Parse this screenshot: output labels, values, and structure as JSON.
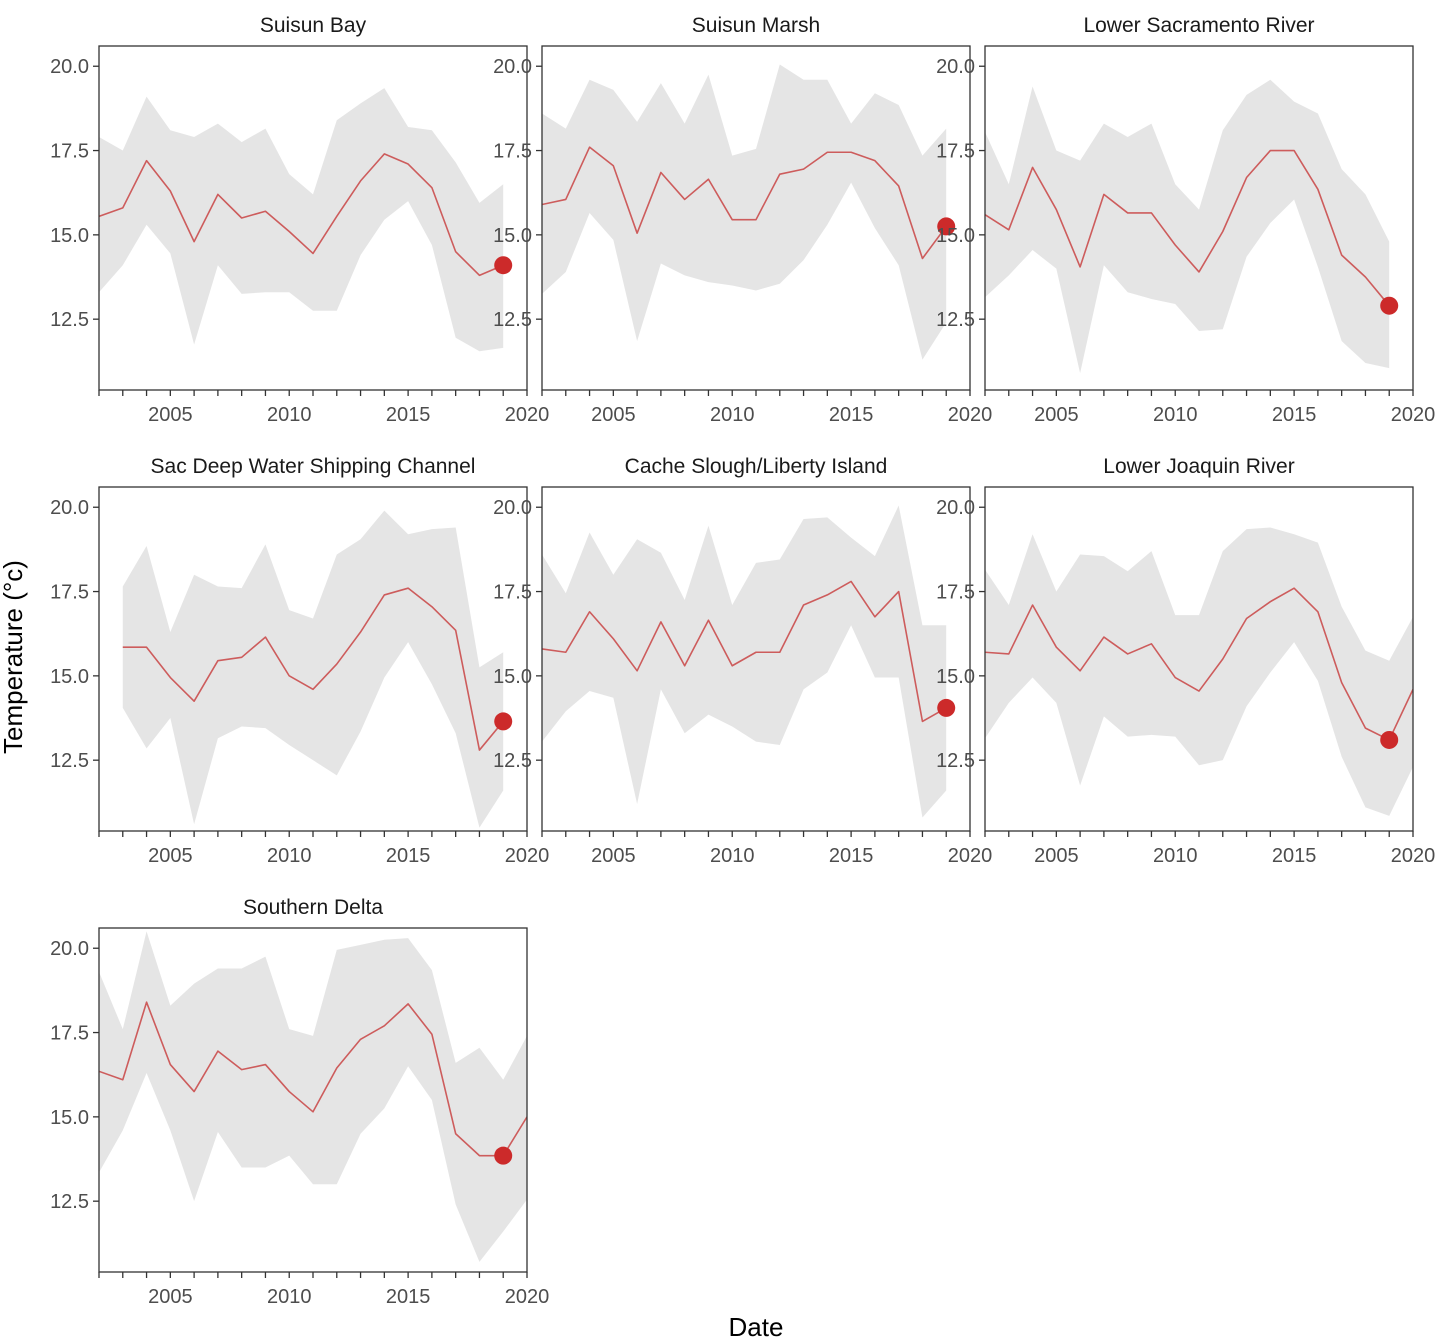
{
  "chart_data": {
    "type": "line",
    "xlabel": "Date",
    "ylabel": "Temperature (°c)",
    "xlim": [
      2002,
      2020
    ],
    "ylim": [
      10.4,
      20.6
    ],
    "x_ticks": [
      "2005",
      "2010",
      "2015",
      "2020"
    ],
    "y_ticks": [
      "12.5",
      "15.0",
      "17.5",
      "20.0"
    ],
    "grid": false,
    "legend": "none",
    "colors": {
      "line": "#cd5c5c",
      "point": "#cc2a2a",
      "ribbon": "#e5e5e5",
      "frame": "#333333"
    },
    "panels": [
      {
        "title": "Suisun Bay",
        "x": [
          2002,
          2003,
          2004,
          2005,
          2006,
          2007,
          2008,
          2009,
          2010,
          2011,
          2012,
          2013,
          2014,
          2015,
          2016,
          2017,
          2018,
          2019
        ],
        "mean": [
          15.55,
          15.8,
          17.2,
          16.3,
          14.8,
          16.2,
          15.5,
          15.7,
          15.1,
          14.45,
          15.55,
          16.6,
          17.4,
          17.1,
          16.4,
          14.5,
          13.8,
          14.1
        ],
        "upper": [
          17.9,
          17.5,
          19.1,
          18.1,
          17.9,
          18.3,
          17.75,
          18.15,
          16.8,
          16.2,
          18.4,
          18.9,
          19.35,
          18.2,
          18.1,
          17.15,
          15.95,
          16.5
        ],
        "lower": [
          13.3,
          14.1,
          15.3,
          14.45,
          11.75,
          14.1,
          13.25,
          13.3,
          13.3,
          12.75,
          12.75,
          14.4,
          15.45,
          16.0,
          14.7,
          11.95,
          11.55,
          11.65
        ],
        "point": {
          "x": 2019,
          "y": 14.1
        }
      },
      {
        "title": "Suisun Marsh",
        "x": [
          2002,
          2003,
          2004,
          2005,
          2006,
          2007,
          2008,
          2009,
          2010,
          2011,
          2012,
          2013,
          2014,
          2015,
          2016,
          2017,
          2018,
          2019
        ],
        "mean": [
          15.9,
          16.05,
          17.6,
          17.05,
          15.05,
          16.85,
          16.05,
          16.65,
          15.45,
          15.45,
          16.8,
          16.95,
          17.45,
          17.45,
          17.2,
          16.45,
          14.3,
          15.25
        ],
        "upper": [
          18.6,
          18.15,
          19.6,
          19.3,
          18.35,
          19.5,
          18.3,
          19.75,
          17.35,
          17.55,
          20.05,
          19.6,
          19.6,
          18.3,
          19.2,
          18.85,
          17.35,
          18.15
        ],
        "lower": [
          13.25,
          13.9,
          15.65,
          14.85,
          11.85,
          14.15,
          13.8,
          13.6,
          13.5,
          13.35,
          13.55,
          14.25,
          15.3,
          16.55,
          15.2,
          14.1,
          11.3,
          12.4
        ],
        "point": {
          "x": 2019,
          "y": 15.25
        }
      },
      {
        "title": "Lower Sacramento River",
        "x": [
          2002,
          2003,
          2004,
          2005,
          2006,
          2007,
          2008,
          2009,
          2010,
          2011,
          2012,
          2013,
          2014,
          2015,
          2016,
          2017,
          2018,
          2019
        ],
        "mean": [
          15.6,
          15.15,
          17.0,
          15.75,
          14.05,
          16.2,
          15.65,
          15.65,
          14.7,
          13.9,
          15.1,
          16.7,
          17.5,
          17.5,
          16.35,
          14.4,
          13.75,
          12.9
        ],
        "upper": [
          18.05,
          16.5,
          19.4,
          17.5,
          17.2,
          18.3,
          17.9,
          18.3,
          16.5,
          15.75,
          18.1,
          19.15,
          19.6,
          18.95,
          18.6,
          16.95,
          16.2,
          14.8
        ],
        "lower": [
          13.15,
          13.8,
          14.55,
          14.0,
          10.9,
          14.1,
          13.3,
          13.1,
          12.95,
          12.15,
          12.2,
          14.35,
          15.35,
          16.05,
          14.05,
          11.85,
          11.2,
          11.05
        ],
        "point": {
          "x": 2019,
          "y": 12.9
        }
      },
      {
        "title": "Sac Deep Water Shipping Channel",
        "x": [
          2003,
          2004,
          2005,
          2006,
          2007,
          2008,
          2009,
          2010,
          2011,
          2012,
          2013,
          2014,
          2015,
          2016,
          2017,
          2018,
          2019
        ],
        "mean": [
          15.85,
          15.85,
          14.95,
          14.25,
          15.45,
          15.55,
          16.15,
          15.0,
          14.6,
          15.35,
          16.3,
          17.4,
          17.6,
          17.05,
          16.35,
          12.8,
          13.65
        ],
        "upper": [
          17.65,
          18.85,
          16.3,
          18.0,
          17.65,
          17.6,
          18.9,
          16.95,
          16.7,
          18.6,
          19.05,
          19.9,
          19.2,
          19.35,
          19.4,
          15.25,
          15.7
        ],
        "lower": [
          14.05,
          12.85,
          13.75,
          10.6,
          13.15,
          13.5,
          13.45,
          12.95,
          12.5,
          12.05,
          13.35,
          14.95,
          16.0,
          14.75,
          13.3,
          10.5,
          11.6
        ],
        "point": {
          "x": 2019,
          "y": 13.65
        }
      },
      {
        "title": "Cache Slough/Liberty Island",
        "x": [
          2002,
          2003,
          2004,
          2005,
          2006,
          2007,
          2008,
          2009,
          2010,
          2011,
          2012,
          2013,
          2014,
          2015,
          2016,
          2017,
          2018,
          2019
        ],
        "mean": [
          15.8,
          15.7,
          16.9,
          16.1,
          15.15,
          16.6,
          15.3,
          16.65,
          15.3,
          15.7,
          15.7,
          17.1,
          17.4,
          17.8,
          16.75,
          17.5,
          13.65,
          14.05
        ],
        "upper": [
          18.6,
          17.45,
          19.25,
          18.0,
          19.05,
          18.65,
          17.25,
          19.45,
          17.1,
          18.35,
          18.45,
          19.65,
          19.7,
          19.1,
          18.55,
          20.05,
          16.5,
          16.5
        ],
        "lower": [
          13.05,
          13.95,
          14.55,
          14.35,
          11.2,
          14.6,
          13.3,
          13.85,
          13.5,
          13.05,
          12.95,
          14.6,
          15.1,
          16.5,
          14.95,
          14.95,
          10.8,
          11.6
        ],
        "point": {
          "x": 2019,
          "y": 14.05
        }
      },
      {
        "title": "Lower Joaquin River",
        "x": [
          2002,
          2003,
          2004,
          2005,
          2006,
          2007,
          2008,
          2009,
          2010,
          2011,
          2012,
          2013,
          2014,
          2015,
          2016,
          2017,
          2018,
          2019,
          2020
        ],
        "mean": [
          15.7,
          15.65,
          17.1,
          15.85,
          15.15,
          16.15,
          15.65,
          15.95,
          14.95,
          14.55,
          15.5,
          16.7,
          17.2,
          17.6,
          16.9,
          14.8,
          13.45,
          13.1,
          14.6
        ],
        "upper": [
          18.15,
          17.1,
          19.2,
          17.5,
          18.6,
          18.55,
          18.1,
          18.7,
          16.8,
          16.8,
          18.7,
          19.35,
          19.4,
          19.2,
          18.95,
          17.05,
          15.75,
          15.45,
          16.75
        ],
        "lower": [
          13.15,
          14.2,
          14.95,
          14.2,
          11.75,
          13.8,
          13.2,
          13.25,
          13.2,
          12.35,
          12.5,
          14.1,
          15.1,
          16.0,
          14.85,
          12.6,
          11.1,
          10.85,
          12.3
        ],
        "point": {
          "x": 2019,
          "y": 13.1
        }
      },
      {
        "title": "Southern Delta",
        "x": [
          2002,
          2003,
          2004,
          2005,
          2006,
          2007,
          2008,
          2009,
          2010,
          2011,
          2012,
          2013,
          2014,
          2015,
          2016,
          2017,
          2018,
          2019,
          2020
        ],
        "mean": [
          16.35,
          16.1,
          18.4,
          16.55,
          15.75,
          16.95,
          16.4,
          16.55,
          15.75,
          15.15,
          16.45,
          17.3,
          17.7,
          18.35,
          17.45,
          14.5,
          13.85,
          13.85,
          15.0
        ],
        "upper": [
          19.3,
          17.6,
          20.5,
          18.3,
          18.95,
          19.4,
          19.4,
          19.75,
          17.6,
          17.4,
          19.95,
          20.1,
          20.25,
          20.3,
          19.35,
          16.6,
          17.05,
          16.1,
          17.4
        ],
        "lower": [
          13.35,
          14.6,
          16.3,
          14.6,
          12.5,
          14.55,
          13.5,
          13.5,
          13.85,
          13.0,
          13.0,
          14.5,
          15.25,
          16.5,
          15.5,
          12.4,
          10.7,
          11.6,
          12.55
        ],
        "point": {
          "x": 2019,
          "y": 13.85
        }
      }
    ]
  }
}
